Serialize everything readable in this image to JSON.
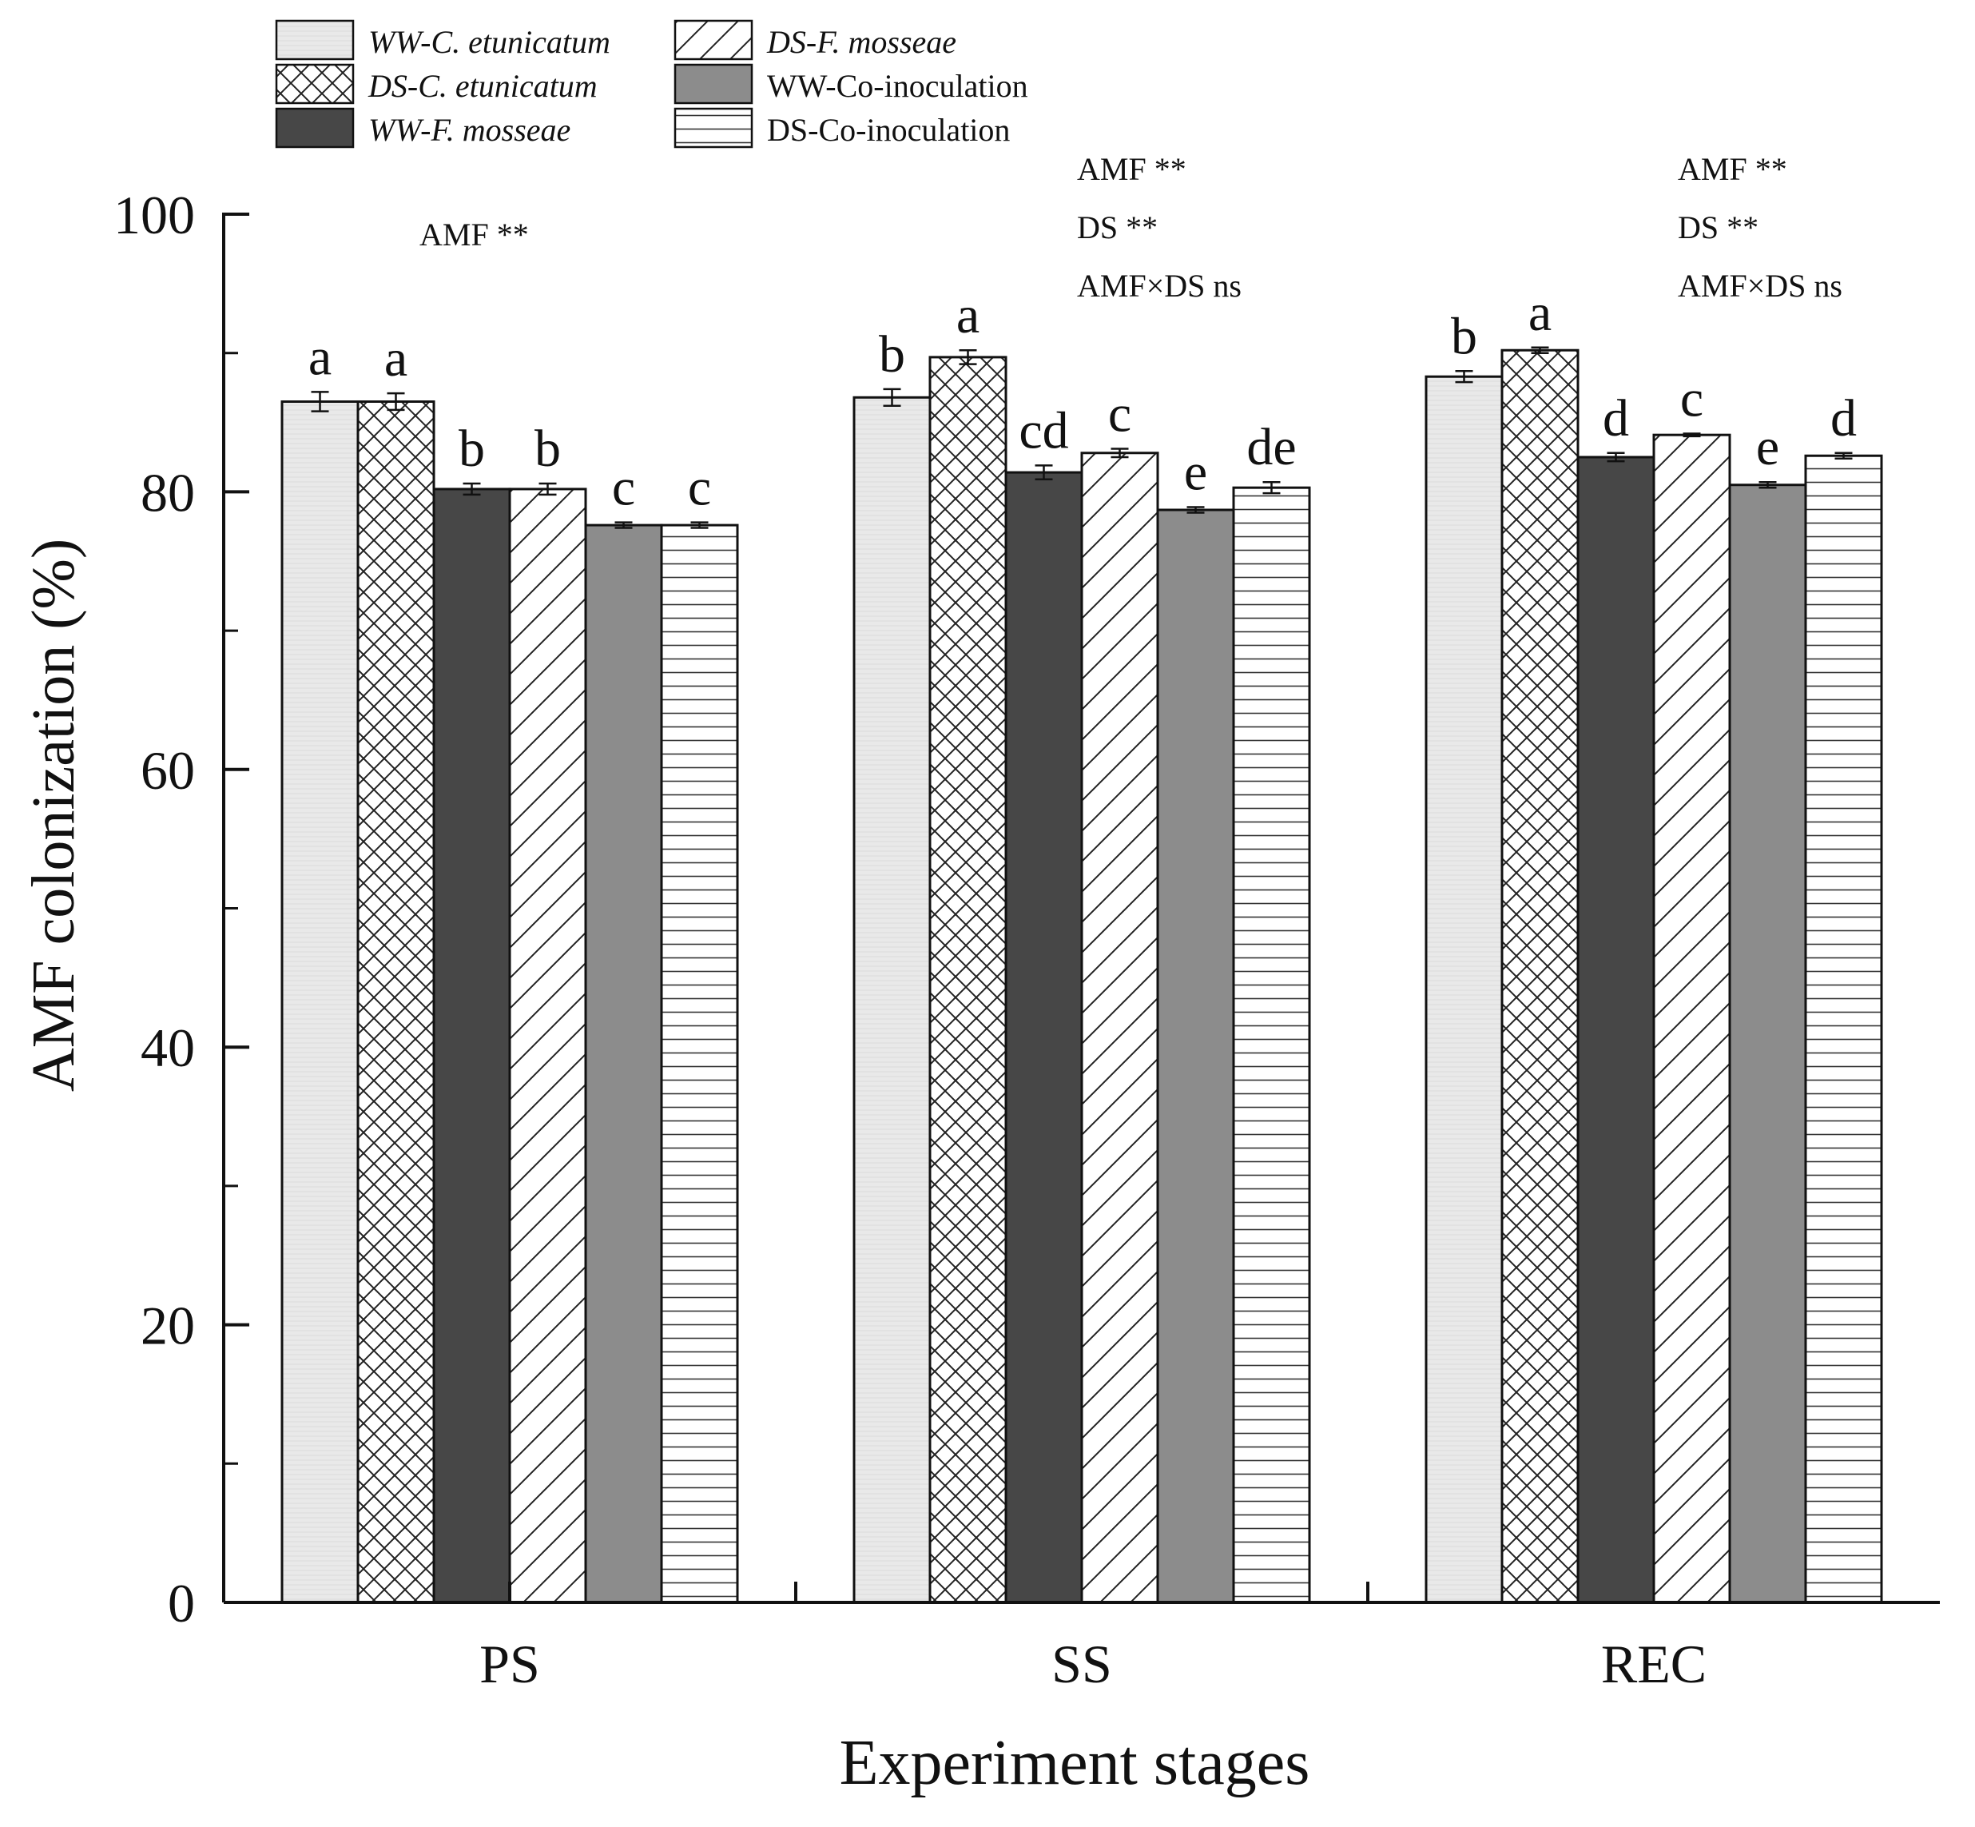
{
  "chart_data": {
    "type": "bar",
    "title": "",
    "xlabel": "Experiment stages",
    "ylabel": "AMF colonization (%)",
    "ylim": [
      0,
      100
    ],
    "yticks": [
      "0",
      "20",
      "40",
      "60",
      "80",
      "100"
    ],
    "grid": false,
    "legend_position": "top-left",
    "categories": [
      "PS",
      "SS",
      "REC"
    ],
    "series": [
      {
        "name_parts": [
          {
            "text": "WW-C. etunicatum",
            "italic": true
          }
        ],
        "pattern": "light",
        "color": "#e8e8e8",
        "values": [
          86.5,
          86.8,
          88.3
        ],
        "errors": [
          0.7,
          0.6,
          0.4
        ],
        "letters": [
          "a",
          "b",
          "b"
        ]
      },
      {
        "name_parts": [
          {
            "text": "DS-C. etunicatum",
            "italic": true
          }
        ],
        "pattern": "crosshatch",
        "color": "#ffffff",
        "values": [
          86.5,
          89.7,
          90.2
        ],
        "errors": [
          0.6,
          0.5,
          0.2
        ],
        "letters": [
          "a",
          "a",
          "a"
        ]
      },
      {
        "name_parts": [
          {
            "text": "WW-F. mosseae",
            "italic": true
          }
        ],
        "pattern": "dark",
        "color": "#454545",
        "values": [
          80.2,
          81.4,
          82.5
        ],
        "errors": [
          0.4,
          0.5,
          0.3
        ],
        "letters": [
          "b",
          "cd",
          "d"
        ]
      },
      {
        "name_parts": [
          {
            "text": "DS-F. mosseae",
            "italic": true
          }
        ],
        "pattern": "diagonal",
        "color": "#ffffff",
        "values": [
          80.2,
          82.8,
          84.1
        ],
        "errors": [
          0.4,
          0.3,
          0.1
        ],
        "letters": [
          "b",
          "c",
          "c"
        ]
      },
      {
        "name_parts": [
          {
            "text": "WW-Co-inoculation",
            "italic": false
          }
        ],
        "pattern": "medium",
        "color": "#8a8a8a",
        "values": [
          77.6,
          78.7,
          80.5
        ],
        "errors": [
          0.2,
          0.2,
          0.2
        ],
        "letters": [
          "c",
          "e",
          "e"
        ]
      },
      {
        "name_parts": [
          {
            "text": "DS-Co-inoculation",
            "italic": false
          }
        ],
        "pattern": "horizontal",
        "color": "#ffffff",
        "values": [
          77.6,
          80.3,
          82.6
        ],
        "errors": [
          0.2,
          0.4,
          0.2
        ],
        "letters": [
          "c",
          "de",
          "d"
        ]
      }
    ],
    "annotations": [
      {
        "group": "PS",
        "lines": [
          "AMF  **"
        ]
      },
      {
        "group": "SS",
        "lines": [
          "AMF  **",
          "DS  **",
          "AMF×DS   ns"
        ]
      },
      {
        "group": "REC",
        "lines": [
          "AMF  **",
          "DS  **",
          "AMF×DS   ns"
        ]
      }
    ]
  }
}
